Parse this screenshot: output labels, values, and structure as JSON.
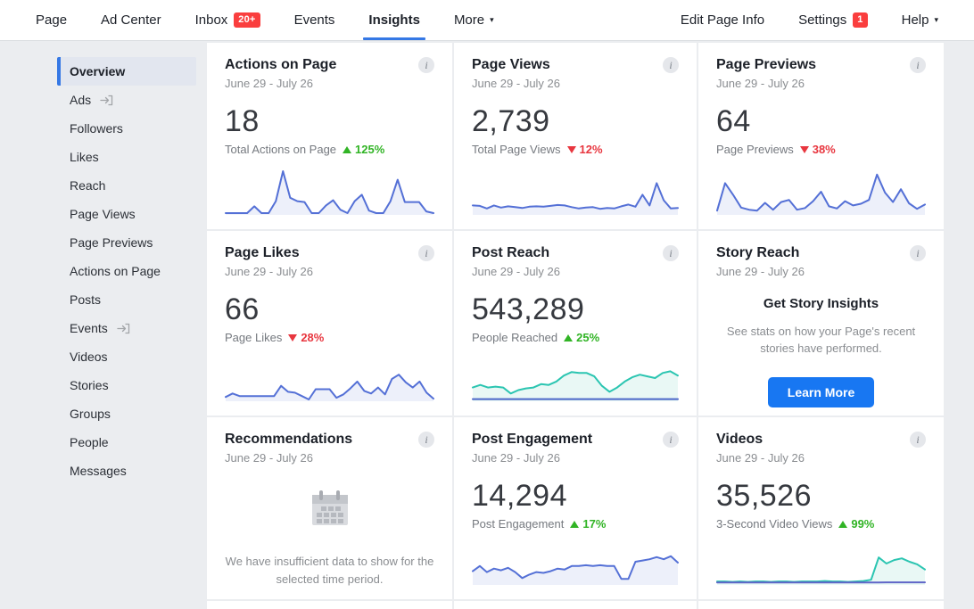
{
  "nav": {
    "left": [
      {
        "label": "Page"
      },
      {
        "label": "Ad Center"
      },
      {
        "label": "Inbox",
        "badge": "20+"
      },
      {
        "label": "Events"
      },
      {
        "label": "Insights",
        "active": true
      },
      {
        "label": "More",
        "caret": "▾"
      }
    ],
    "right": [
      {
        "label": "Edit Page Info"
      },
      {
        "label": "Settings",
        "badge": "1"
      },
      {
        "label": "Help",
        "caret": "▾"
      }
    ]
  },
  "sidebar": {
    "items": [
      {
        "label": "Overview",
        "selected": true
      },
      {
        "label": "Ads",
        "external": true
      },
      {
        "label": "Followers"
      },
      {
        "label": "Likes"
      },
      {
        "label": "Reach"
      },
      {
        "label": "Page Views"
      },
      {
        "label": "Page Previews"
      },
      {
        "label": "Actions on Page"
      },
      {
        "label": "Posts"
      },
      {
        "label": "Events",
        "external": true
      },
      {
        "label": "Videos"
      },
      {
        "label": "Stories"
      },
      {
        "label": "Groups"
      },
      {
        "label": "People"
      },
      {
        "label": "Messages"
      }
    ]
  },
  "cards": [
    {
      "type": "metric",
      "title": "Actions on Page",
      "date_range": "June 29 - July 26",
      "value": "18",
      "label": "Total Actions on Page",
      "delta": {
        "direction": "up",
        "value": "125%"
      },
      "chart": 0
    },
    {
      "type": "metric",
      "title": "Page Views",
      "date_range": "June 29 - July 26",
      "value": "2,739",
      "label": "Total Page Views",
      "delta": {
        "direction": "down",
        "value": "12%"
      },
      "chart": 1
    },
    {
      "type": "metric",
      "title": "Page Previews",
      "date_range": "June 29 - July 26",
      "value": "64",
      "label": "Page Previews",
      "delta": {
        "direction": "down",
        "value": "38%"
      },
      "chart": 2
    },
    {
      "type": "metric",
      "title": "Page Likes",
      "date_range": "June 29 - July 26",
      "value": "66",
      "label": "Page Likes",
      "delta": {
        "direction": "down",
        "value": "28%"
      },
      "chart": 3
    },
    {
      "type": "metric",
      "title": "Post Reach",
      "date_range": "June 29 - July 26",
      "value": "543,289",
      "label": "People Reached",
      "delta": {
        "direction": "up",
        "value": "25%"
      },
      "chart": 4
    },
    {
      "type": "story",
      "title": "Story Reach",
      "date_range": "June 29 - July 26",
      "heading": "Get Story Insights",
      "description": "See stats on how your Page's recent stories have performed.",
      "button_label": "Learn More"
    },
    {
      "type": "empty",
      "title": "Recommendations",
      "date_range": "June 29 - July 26",
      "message": "We have insufficient data to show for the selected time period."
    },
    {
      "type": "metric",
      "title": "Post Engagement",
      "date_range": "June 29 - July 26",
      "value": "14,294",
      "label": "Post Engagement",
      "delta": {
        "direction": "up",
        "value": "17%"
      },
      "chart": 5
    },
    {
      "type": "metric",
      "title": "Videos",
      "date_range": "June 29 - July 26",
      "value": "35,526",
      "label": "3-Second Video Views",
      "delta": {
        "direction": "up",
        "value": "99%"
      },
      "chart": 6
    }
  ],
  "chart_data": [
    {
      "type": "line",
      "card": "Actions on Page",
      "x_range": "June 29 - July 26 (daily)",
      "grid": false,
      "series": [
        {
          "name": "daily-actions",
          "color": "#5470D6",
          "fill": "#EDF0FA",
          "values": [
            0.02,
            0.02,
            0.02,
            0.02,
            0.18,
            0.02,
            0.02,
            0.3,
            1.0,
            0.38,
            0.3,
            0.28,
            0.02,
            0.02,
            0.2,
            0.32,
            0.1,
            0.02,
            0.3,
            0.45,
            0.08,
            0.02,
            0.02,
            0.3,
            0.8,
            0.28,
            0.28,
            0.28,
            0.06,
            0.02
          ]
        }
      ]
    },
    {
      "type": "line",
      "card": "Page Views",
      "x_range": "June 29 - July 26 (daily)",
      "grid": false,
      "series": [
        {
          "name": "daily-views",
          "color": "#5470D6",
          "fill": "#EDF0FA",
          "values": [
            0.2,
            0.19,
            0.13,
            0.2,
            0.15,
            0.18,
            0.16,
            0.14,
            0.17,
            0.18,
            0.17,
            0.19,
            0.21,
            0.2,
            0.16,
            0.13,
            0.15,
            0.16,
            0.12,
            0.14,
            0.13,
            0.18,
            0.22,
            0.17,
            0.45,
            0.2,
            0.72,
            0.32,
            0.13,
            0.14
          ]
        }
      ]
    },
    {
      "type": "line",
      "card": "Page Previews",
      "x_range": "June 29 - July 26 (daily)",
      "grid": false,
      "series": [
        {
          "name": "daily-previews",
          "color": "#5470D6",
          "fill": "#EDF0FA",
          "values": [
            0.08,
            0.72,
            0.45,
            0.15,
            0.1,
            0.08,
            0.26,
            0.1,
            0.28,
            0.33,
            0.1,
            0.14,
            0.3,
            0.52,
            0.18,
            0.13,
            0.3,
            0.2,
            0.24,
            0.33,
            0.92,
            0.5,
            0.28,
            0.58,
            0.25,
            0.12,
            0.22
          ]
        }
      ]
    },
    {
      "type": "line",
      "card": "Page Likes",
      "x_range": "June 29 - July 26 (daily)",
      "grid": false,
      "series": [
        {
          "name": "daily-likes",
          "color": "#5470D6",
          "fill": "#EDF0FA",
          "values": [
            0.08,
            0.16,
            0.1,
            0.1,
            0.1,
            0.1,
            0.1,
            0.1,
            0.34,
            0.2,
            0.18,
            0.1,
            0.02,
            0.26,
            0.26,
            0.26,
            0.06,
            0.14,
            0.28,
            0.44,
            0.22,
            0.16,
            0.3,
            0.14,
            0.5,
            0.6,
            0.42,
            0.3,
            0.44,
            0.18,
            0.04
          ]
        }
      ]
    },
    {
      "type": "line",
      "card": "Post Reach",
      "x_range": "June 29 - July 26 (daily)",
      "grid": false,
      "series": [
        {
          "name": "organic",
          "color": "#2BC5B1",
          "fill": "#E9F8F5",
          "values": [
            0.3,
            0.36,
            0.3,
            0.32,
            0.3,
            0.16,
            0.24,
            0.28,
            0.3,
            0.38,
            0.36,
            0.44,
            0.58,
            0.66,
            0.64,
            0.64,
            0.56,
            0.34,
            0.2,
            0.3,
            0.44,
            0.54,
            0.6,
            0.56,
            0.52,
            0.64,
            0.68,
            0.58
          ]
        },
        {
          "name": "paid",
          "color": "#4A66C8",
          "fill": null,
          "values": [
            0.03,
            0.03,
            0.03,
            0.03,
            0.03,
            0.03,
            0.03,
            0.03,
            0.03,
            0.03,
            0.03,
            0.03,
            0.03,
            0.03,
            0.03,
            0.03,
            0.03,
            0.03,
            0.03,
            0.03,
            0.03,
            0.03,
            0.03,
            0.03,
            0.03,
            0.03,
            0.03,
            0.03
          ]
        }
      ]
    },
    {
      "type": "line",
      "card": "Post Engagement",
      "x_range": "June 29 - July 26 (daily)",
      "grid": false,
      "series": [
        {
          "name": "daily-engagement",
          "color": "#5470D6",
          "fill": "#EDF0FA",
          "values": [
            0.3,
            0.42,
            0.28,
            0.36,
            0.32,
            0.38,
            0.28,
            0.14,
            0.22,
            0.28,
            0.26,
            0.3,
            0.36,
            0.34,
            0.42,
            0.42,
            0.44,
            0.42,
            0.44,
            0.42,
            0.42,
            0.12,
            0.12,
            0.52,
            0.55,
            0.58,
            0.63,
            0.58,
            0.65,
            0.5
          ]
        }
      ]
    },
    {
      "type": "line",
      "card": "Videos",
      "x_range": "June 29 - July 26 (daily)",
      "grid": false,
      "series": [
        {
          "name": "3-second-views",
          "color": "#2BC5B1",
          "fill": "#E9F8F5",
          "values": [
            0.06,
            0.06,
            0.05,
            0.06,
            0.05,
            0.06,
            0.06,
            0.05,
            0.06,
            0.06,
            0.05,
            0.06,
            0.06,
            0.06,
            0.07,
            0.06,
            0.06,
            0.05,
            0.06,
            0.07,
            0.1,
            0.62,
            0.48,
            0.56,
            0.6,
            0.52,
            0.46,
            0.34
          ]
        },
        {
          "name": "paid",
          "color": "#6065C8",
          "fill": null,
          "values": [
            0.035,
            0.035,
            0.035,
            0.035,
            0.035,
            0.035,
            0.035,
            0.035,
            0.035,
            0.035,
            0.035,
            0.035,
            0.035,
            0.035,
            0.035,
            0.035,
            0.035,
            0.035,
            0.035,
            0.035,
            0.035,
            0.035,
            0.04,
            0.04,
            0.04,
            0.04,
            0.04,
            0.04
          ]
        }
      ]
    }
  ],
  "icons": {
    "info": "italic-i-in-circle",
    "external": "arrow-into-bracket",
    "calendar": "gray-calendar-glyph",
    "caret": "▾"
  },
  "colors": {
    "accent_blue": "#3578E5",
    "button_blue": "#1877F2",
    "badge_red": "#FA3E3E",
    "delta_green": "#31B425",
    "delta_red": "#E8363F",
    "chart_blue": "#5470D6",
    "chart_teal": "#2BC5B1",
    "page_bg": "#EBEDF0",
    "card_bg": "#FFFFFF"
  }
}
